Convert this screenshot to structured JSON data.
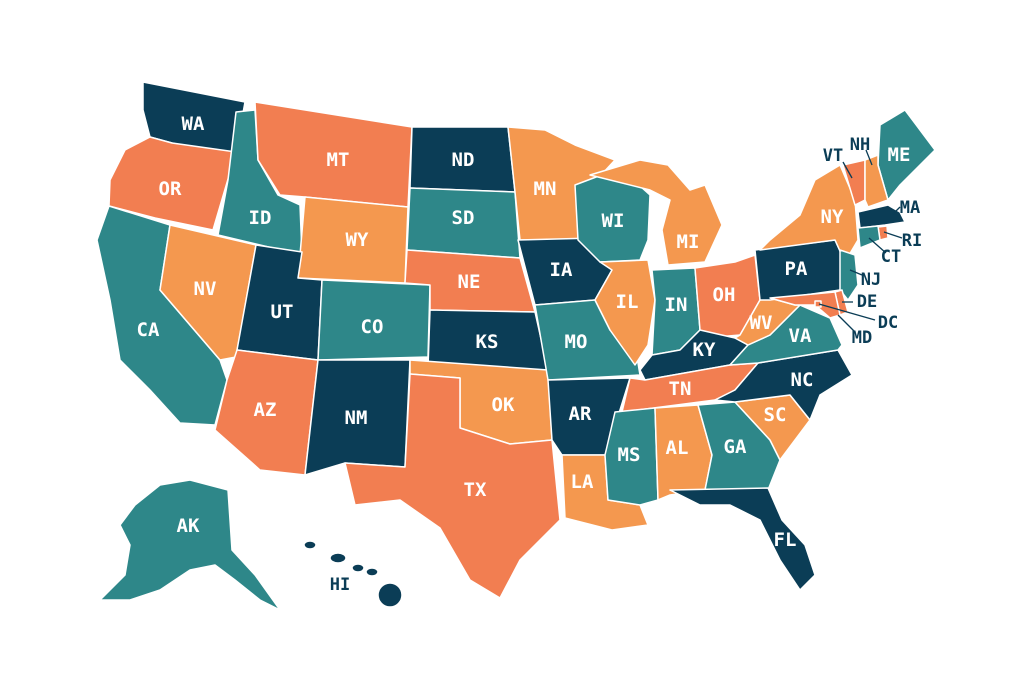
{
  "colors": {
    "navy": "#0b3d56",
    "teal": "#2e8789",
    "coral": "#f27e51",
    "peach": "#f4984f"
  },
  "states": [
    {
      "abbr": "WA",
      "color": "navy"
    },
    {
      "abbr": "OR",
      "color": "coral"
    },
    {
      "abbr": "CA",
      "color": "teal"
    },
    {
      "abbr": "ID",
      "color": "teal"
    },
    {
      "abbr": "NV",
      "color": "peach"
    },
    {
      "abbr": "MT",
      "color": "coral"
    },
    {
      "abbr": "WY",
      "color": "peach"
    },
    {
      "abbr": "UT",
      "color": "navy"
    },
    {
      "abbr": "AZ",
      "color": "coral"
    },
    {
      "abbr": "CO",
      "color": "teal"
    },
    {
      "abbr": "NM",
      "color": "navy"
    },
    {
      "abbr": "ND",
      "color": "navy"
    },
    {
      "abbr": "SD",
      "color": "teal"
    },
    {
      "abbr": "NE",
      "color": "coral"
    },
    {
      "abbr": "KS",
      "color": "navy"
    },
    {
      "abbr": "OK",
      "color": "peach"
    },
    {
      "abbr": "TX",
      "color": "coral"
    },
    {
      "abbr": "MN",
      "color": "peach"
    },
    {
      "abbr": "IA",
      "color": "navy"
    },
    {
      "abbr": "MO",
      "color": "teal"
    },
    {
      "abbr": "AR",
      "color": "navy"
    },
    {
      "abbr": "LA",
      "color": "peach"
    },
    {
      "abbr": "WI",
      "color": "teal"
    },
    {
      "abbr": "IL",
      "color": "peach"
    },
    {
      "abbr": "MI",
      "color": "peach"
    },
    {
      "abbr": "IN",
      "color": "teal"
    },
    {
      "abbr": "OH",
      "color": "coral"
    },
    {
      "abbr": "KY",
      "color": "navy"
    },
    {
      "abbr": "TN",
      "color": "coral"
    },
    {
      "abbr": "MS",
      "color": "teal"
    },
    {
      "abbr": "AL",
      "color": "peach"
    },
    {
      "abbr": "GA",
      "color": "teal"
    },
    {
      "abbr": "FL",
      "color": "navy"
    },
    {
      "abbr": "SC",
      "color": "peach"
    },
    {
      "abbr": "NC",
      "color": "navy"
    },
    {
      "abbr": "VA",
      "color": "teal"
    },
    {
      "abbr": "WV",
      "color": "peach"
    },
    {
      "abbr": "PA",
      "color": "navy"
    },
    {
      "abbr": "NY",
      "color": "peach"
    },
    {
      "abbr": "ME",
      "color": "teal"
    },
    {
      "abbr": "VT",
      "color": "coral"
    },
    {
      "abbr": "NH",
      "color": "peach"
    },
    {
      "abbr": "MA",
      "color": "navy"
    },
    {
      "abbr": "RI",
      "color": "coral"
    },
    {
      "abbr": "CT",
      "color": "teal"
    },
    {
      "abbr": "NJ",
      "color": "teal"
    },
    {
      "abbr": "DE",
      "color": "coral"
    },
    {
      "abbr": "MD",
      "color": "coral"
    },
    {
      "abbr": "DC",
      "color": "coral"
    },
    {
      "abbr": "AK",
      "color": "teal"
    },
    {
      "abbr": "HI",
      "color": "navy"
    }
  ]
}
